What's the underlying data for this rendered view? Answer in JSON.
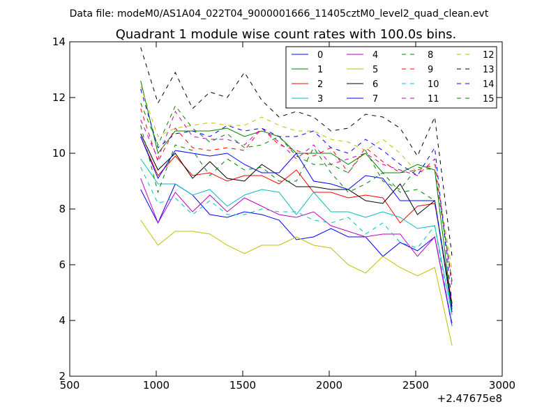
{
  "figure": {
    "header": "Data file: modeM0/AS1A04_022T04_9000001666_11405cztM0_level2_quad_clean.evt",
    "offset_label": "+2.47675e8"
  },
  "chart_data": {
    "type": "line",
    "title": "Quadrant 1 module wise count rates with 100.0s bins.",
    "xlabel": "",
    "ylabel": "",
    "xlim": [
      500,
      3000
    ],
    "ylim": [
      2,
      14
    ],
    "x_ticks": [
      500,
      1000,
      1500,
      2000,
      2500,
      3000
    ],
    "y_ticks": [
      2,
      4,
      6,
      8,
      10,
      12,
      14
    ],
    "legend_position": "top-right",
    "x": [
      910,
      1010,
      1110,
      1210,
      1310,
      1410,
      1510,
      1610,
      1710,
      1810,
      1910,
      2010,
      2110,
      2210,
      2310,
      2410,
      2510,
      2610,
      2710
    ],
    "series": [
      {
        "name": "0",
        "color": "#0000ff",
        "dash": "solid",
        "values": [
          8.7,
          7.5,
          8.9,
          8.5,
          7.8,
          7.7,
          7.9,
          7.8,
          7.6,
          6.9,
          7.0,
          7.3,
          7.0,
          7.0,
          6.3,
          6.8,
          6.5,
          7.0,
          3.8
        ]
      },
      {
        "name": "1",
        "color": "#008000",
        "dash": "solid",
        "values": [
          12.6,
          10.0,
          10.8,
          10.8,
          10.8,
          10.9,
          10.6,
          10.8,
          10.6,
          10.0,
          10.0,
          10.0,
          9.6,
          10.0,
          9.3,
          9.3,
          9.6,
          9.4,
          4.4
        ]
      },
      {
        "name": "2",
        "color": "#ff0000",
        "dash": "solid",
        "values": [
          10.6,
          9.2,
          9.9,
          9.2,
          9.3,
          9.0,
          9.2,
          9.2,
          8.9,
          9.4,
          8.6,
          8.6,
          8.4,
          8.5,
          8.4,
          7.5,
          8.1,
          8.2,
          4.6
        ]
      },
      {
        "name": "3",
        "color": "#00bfbf",
        "dash": "solid",
        "values": [
          9.8,
          8.9,
          8.9,
          8.5,
          8.7,
          8.1,
          8.5,
          8.7,
          8.6,
          7.8,
          8.6,
          7.9,
          7.9,
          7.7,
          7.9,
          7.7,
          7.3,
          7.4,
          4.2
        ]
      },
      {
        "name": "4",
        "color": "#bf00bf",
        "dash": "solid",
        "values": [
          9.1,
          7.5,
          8.6,
          7.9,
          8.5,
          7.9,
          8.4,
          8.1,
          7.8,
          7.7,
          7.9,
          7.4,
          7.2,
          7.0,
          7.1,
          7.1,
          6.3,
          7.0,
          3.9
        ]
      },
      {
        "name": "5",
        "color": "#bfbf00",
        "dash": "solid",
        "values": [
          7.6,
          6.7,
          7.2,
          7.2,
          7.1,
          6.7,
          6.4,
          6.7,
          6.7,
          7.0,
          6.7,
          6.6,
          6.0,
          5.7,
          6.3,
          5.9,
          5.6,
          5.9,
          3.1
        ]
      },
      {
        "name": "6",
        "color": "#000000",
        "dash": "solid",
        "values": [
          10.7,
          9.4,
          10.0,
          9.1,
          9.7,
          9.1,
          9.0,
          9.6,
          9.2,
          8.8,
          8.8,
          8.7,
          8.7,
          8.3,
          8.2,
          8.9,
          7.8,
          8.3,
          4.5
        ]
      },
      {
        "name": "7",
        "color": "#0000ff",
        "dash": "solid",
        "values": [
          10.6,
          9.1,
          10.1,
          10.0,
          9.9,
          10.0,
          9.6,
          9.3,
          9.3,
          10.0,
          9.0,
          8.9,
          8.7,
          9.2,
          9.1,
          8.3,
          8.3,
          8.3,
          4.3
        ]
      },
      {
        "name": "8",
        "color": "#008000",
        "dash": "dashed",
        "values": [
          11.0,
          8.6,
          10.3,
          10.1,
          9.2,
          9.8,
          9.4,
          9.5,
          9.0,
          9.0,
          10.2,
          9.3,
          8.6,
          8.9,
          9.3,
          8.6,
          8.7,
          8.3,
          4.4
        ]
      },
      {
        "name": "9",
        "color": "#ff0000",
        "dash": "dashed",
        "values": [
          11.6,
          9.7,
          10.9,
          10.2,
          10.1,
          10.2,
          10.1,
          10.9,
          10.3,
          10.1,
          9.9,
          10.2,
          9.3,
          10.2,
          9.7,
          9.3,
          9.4,
          9.6,
          5.4
        ]
      },
      {
        "name": "10",
        "color": "#00bfbf",
        "dash": "dashed",
        "values": [
          9.5,
          8.2,
          8.4,
          7.8,
          8.3,
          7.8,
          7.8,
          8.0,
          7.9,
          7.9,
          7.6,
          7.5,
          7.7,
          7.1,
          7.5,
          6.8,
          6.6,
          7.4,
          3.8
        ]
      },
      {
        "name": "11",
        "color": "#bf00bf",
        "dash": "dashed",
        "values": [
          11.2,
          9.8,
          11.5,
          10.6,
          10.5,
          10.5,
          10.3,
          10.9,
          10.4,
          9.8,
          10.3,
          9.6,
          9.8,
          10.0,
          9.6,
          9.4,
          9.2,
          9.8,
          5.2
        ]
      },
      {
        "name": "12",
        "color": "#bfbf00",
        "dash": "dashed",
        "values": [
          12.4,
          10.6,
          10.9,
          11.0,
          11.1,
          11.0,
          11.0,
          11.3,
          11.0,
          10.8,
          10.8,
          10.5,
          10.4,
          10.1,
          10.5,
          10.0,
          9.3,
          9.6,
          5.8
        ]
      },
      {
        "name": "13",
        "color": "#000000",
        "dash": "dashed",
        "values": [
          13.8,
          11.8,
          12.9,
          11.6,
          12.2,
          12.0,
          12.9,
          11.9,
          11.3,
          11.5,
          11.3,
          10.8,
          10.9,
          11.4,
          11.3,
          10.9,
          9.9,
          11.3,
          6.3
        ]
      },
      {
        "name": "14",
        "color": "#0000ff",
        "dash": "dashed",
        "values": [
          12.3,
          10.2,
          10.7,
          10.8,
          10.6,
          11.0,
          10.8,
          10.9,
          10.6,
          10.6,
          10.8,
          10.2,
          10.0,
          10.5,
          10.1,
          9.6,
          9.2,
          10.2,
          4.6
        ]
      },
      {
        "name": "15",
        "color": "#008000",
        "dash": "dashed",
        "values": [
          11.8,
          10.3,
          11.7,
          10.9,
          10.4,
          10.7,
          10.2,
          10.3,
          10.6,
          9.9,
          9.6,
          9.6,
          9.3,
          10.1,
          9.0,
          8.7,
          9.5,
          9.4,
          5.4
        ]
      }
    ]
  }
}
